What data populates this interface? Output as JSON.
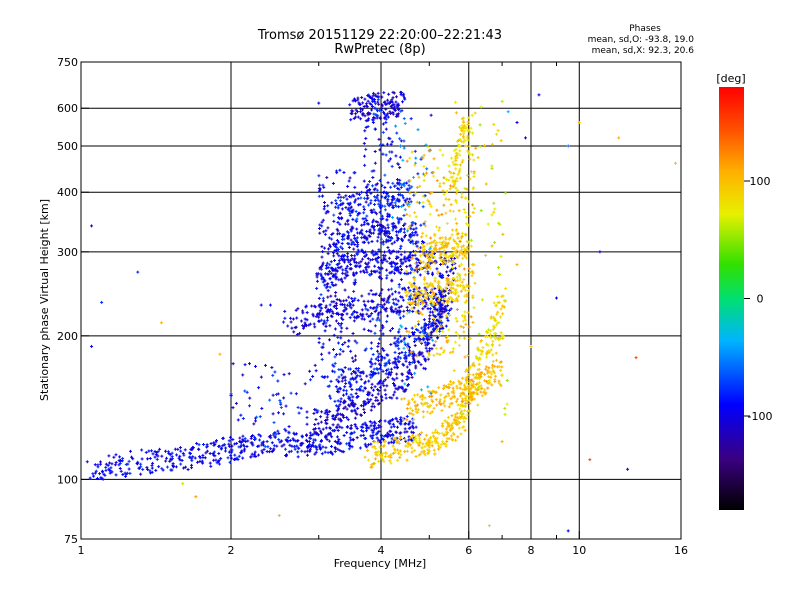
{
  "chart_data": {
    "type": "scatter",
    "title": "Tromsø 20151129 22:20:00–22:21:43",
    "subtitle": "RwPretec (8p)",
    "xlabel": "Frequency [MHz]",
    "ylabel": "Stationary phase Virtual Height [km]",
    "x_scale": "log",
    "y_scale": "log",
    "xlim": [
      1,
      16
    ],
    "ylim": [
      75,
      750
    ],
    "x_ticks": [
      1,
      2,
      4,
      6,
      8,
      10,
      16
    ],
    "x_tick_labels": [
      "1",
      "2",
      "4",
      "6",
      "8",
      "10",
      "16"
    ],
    "x_minor_ticks": [
      3,
      5,
      7,
      9
    ],
    "y_ticks": [
      75,
      100,
      200,
      300,
      400,
      500,
      600,
      750
    ],
    "y_tick_labels": [
      "75",
      "100",
      "200",
      "300",
      "400",
      "500",
      "600",
      "750"
    ],
    "grid": true,
    "stats": {
      "heading": "Phases",
      "line_o": "mean, sd,O: -93.8, 19.0",
      "line_x": "mean, sd,X:  92.3, 20.6"
    },
    "colorbar": {
      "label": "[deg]",
      "range": [
        -180,
        180
      ],
      "ticks": [
        100,
        0,
        -100
      ],
      "tick_labels": [
        "100",
        "0",
        "-100"
      ]
    },
    "traces": [
      {
        "name": "",
        "phase": -95,
        "points": [
          [
            1.05,
            104
          ],
          [
            1.2,
            107
          ],
          [
            1.4,
            110
          ],
          [
            1.6,
            111
          ],
          [
            1.8,
            113
          ],
          [
            2.0,
            116
          ],
          [
            2.2,
            118
          ],
          [
            2.5,
            119
          ],
          [
            2.8,
            118
          ],
          [
            3.0,
            119
          ],
          [
            3.3,
            121
          ],
          [
            3.7,
            124
          ],
          [
            4.0,
            126
          ],
          [
            4.3,
            127
          ],
          [
            4.7,
            128
          ]
        ]
      },
      {
        "name": "",
        "phase": -110,
        "points": [
          [
            3.0,
            130
          ],
          [
            3.3,
            137
          ],
          [
            3.6,
            144
          ],
          [
            4.0,
            152
          ],
          [
            4.4,
            162
          ],
          [
            4.8,
            180
          ],
          [
            5.1,
            210
          ],
          [
            5.3,
            240
          ],
          [
            5.5,
            290
          ]
        ]
      },
      {
        "name": "",
        "phase": -90,
        "points": [
          [
            3.2,
            150
          ],
          [
            3.6,
            160
          ],
          [
            4.0,
            175
          ],
          [
            4.5,
            190
          ],
          [
            5.0,
            205
          ],
          [
            5.4,
            225
          ]
        ]
      },
      {
        "name": "",
        "phase": -105,
        "points": [
          [
            2.6,
            212
          ],
          [
            3.0,
            220
          ],
          [
            3.5,
            228
          ],
          [
            4.0,
            234
          ],
          [
            4.5,
            238
          ],
          [
            5.0,
            240
          ],
          [
            5.5,
            240
          ]
        ]
      },
      {
        "name": "",
        "phase": -100,
        "points": [
          [
            3.0,
            262
          ],
          [
            3.3,
            275
          ],
          [
            3.6,
            285
          ],
          [
            4.0,
            288
          ],
          [
            4.4,
            285
          ],
          [
            4.8,
            284
          ],
          [
            5.3,
            282
          ]
        ]
      },
      {
        "name": "",
        "phase": -95,
        "points": [
          [
            3.2,
            315
          ],
          [
            3.6,
            330
          ],
          [
            4.0,
            335
          ],
          [
            4.4,
            330
          ],
          [
            4.8,
            320
          ]
        ]
      },
      {
        "name": "",
        "phase": -85,
        "points": [
          [
            3.3,
            360
          ],
          [
            3.8,
            380
          ],
          [
            4.2,
            392
          ],
          [
            4.6,
            400
          ]
        ]
      },
      {
        "name": "",
        "phase": -110,
        "points": [
          [
            3.5,
            590
          ],
          [
            3.8,
            600
          ],
          [
            4.1,
            610
          ],
          [
            4.4,
            615
          ]
        ]
      },
      {
        "name": "",
        "phase": 95,
        "points": [
          [
            3.8,
            112
          ],
          [
            4.2,
            115
          ],
          [
            4.7,
            118
          ],
          [
            5.1,
            120
          ],
          [
            5.5,
            126
          ],
          [
            5.8,
            135
          ],
          [
            6.0,
            150
          ],
          [
            6.2,
            175
          ]
        ]
      },
      {
        "name": "",
        "phase": 100,
        "points": [
          [
            4.5,
            140
          ],
          [
            5.0,
            145
          ],
          [
            5.5,
            150
          ],
          [
            6.0,
            155
          ],
          [
            6.5,
            160
          ],
          [
            6.9,
            172
          ]
        ]
      },
      {
        "name": "",
        "phase": 90,
        "points": [
          [
            4.5,
            240
          ],
          [
            5.0,
            245
          ],
          [
            5.5,
            250
          ],
          [
            5.9,
            255
          ]
        ]
      },
      {
        "name": "",
        "phase": 95,
        "points": [
          [
            4.8,
            290
          ],
          [
            5.2,
            300
          ],
          [
            5.6,
            305
          ],
          [
            6.0,
            310
          ]
        ]
      },
      {
        "name": "",
        "phase": 85,
        "points": [
          [
            5.5,
            400
          ],
          [
            5.8,
            500
          ],
          [
            6.0,
            560
          ]
        ]
      },
      {
        "name": "",
        "phase": 80,
        "points": [
          [
            6.3,
            180
          ],
          [
            6.8,
            200
          ],
          [
            7.0,
            240
          ]
        ]
      }
    ],
    "scattered": [
      {
        "x": 1.05,
        "y": 190,
        "phase": -95
      },
      {
        "x": 1.05,
        "y": 340,
        "phase": -95
      },
      {
        "x": 1.1,
        "y": 235,
        "phase": -80
      },
      {
        "x": 1.3,
        "y": 272,
        "phase": -80
      },
      {
        "x": 1.45,
        "y": 213,
        "phase": 110
      },
      {
        "x": 1.6,
        "y": 98,
        "phase": 60
      },
      {
        "x": 1.7,
        "y": 92,
        "phase": 120
      },
      {
        "x": 1.9,
        "y": 183,
        "phase": 110
      },
      {
        "x": 2.0,
        "y": 150,
        "phase": -95
      },
      {
        "x": 2.3,
        "y": 232,
        "phase": -95
      },
      {
        "x": 2.4,
        "y": 232,
        "phase": -95
      },
      {
        "x": 2.5,
        "y": 84,
        "phase": 110
      },
      {
        "x": 3.0,
        "y": 615,
        "phase": -95
      },
      {
        "x": 7.0,
        "y": 620,
        "phase": 60
      },
      {
        "x": 7.2,
        "y": 590,
        "phase": -40
      },
      {
        "x": 7.5,
        "y": 560,
        "phase": -95
      },
      {
        "x": 8.3,
        "y": 640,
        "phase": -95
      },
      {
        "x": 9.5,
        "y": 500,
        "phase": -60
      },
      {
        "x": 10.0,
        "y": 560,
        "phase": 100
      },
      {
        "x": 11.0,
        "y": 300,
        "phase": -95
      },
      {
        "x": 12.0,
        "y": 520,
        "phase": 110
      },
      {
        "x": 13.0,
        "y": 180,
        "phase": 150
      },
      {
        "x": 12.5,
        "y": 105,
        "phase": -95
      },
      {
        "x": 10.5,
        "y": 110,
        "phase": 150
      },
      {
        "x": 7.5,
        "y": 282,
        "phase": 110
      },
      {
        "x": 8.0,
        "y": 190,
        "phase": 100
      },
      {
        "x": 9.0,
        "y": 240,
        "phase": -95
      },
      {
        "x": 9.5,
        "y": 78,
        "phase": -95
      },
      {
        "x": 7.0,
        "y": 120,
        "phase": 110
      },
      {
        "x": 6.6,
        "y": 80,
        "phase": 60
      },
      {
        "x": 15.6,
        "y": 460,
        "phase": 100
      },
      {
        "x": 7.8,
        "y": 520,
        "phase": -95
      }
    ]
  }
}
